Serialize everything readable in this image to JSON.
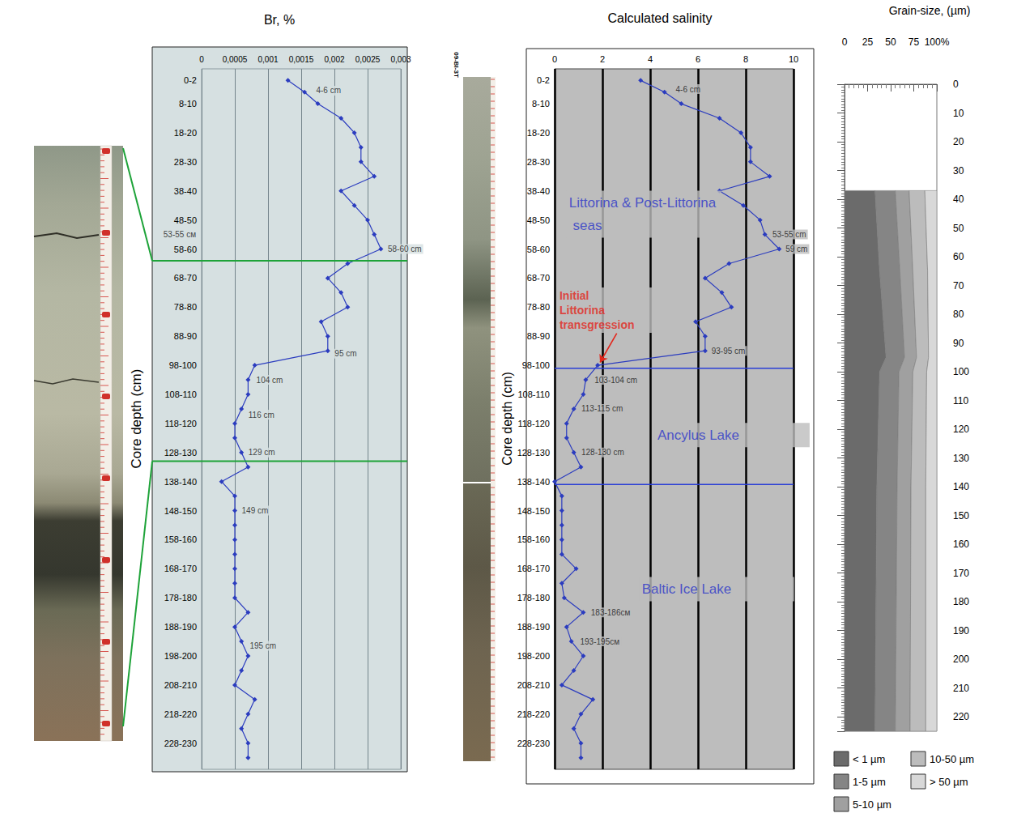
{
  "core_id": "09-BI-3T",
  "chart_data": [
    {
      "type": "line",
      "title": "Br, %",
      "y_label": "Core depth (cm)",
      "grid": true,
      "xlim": [
        0,
        0.003
      ],
      "xticks": [
        0,
        {
          "value": 0.0005,
          "label": "0,0005"
        },
        {
          "value": 0.001,
          "label": "0,001"
        },
        {
          "value": 0.0015,
          "label": "0,0015"
        },
        {
          "value": 0.002,
          "label": "0,002"
        },
        {
          "value": 0.0025,
          "label": "0,0025"
        },
        {
          "value": 0.003,
          "label": "0,003"
        }
      ],
      "ylim": [
        -3,
        238
      ],
      "yticks": [
        {
          "value": 1,
          "label": "0-2"
        },
        {
          "value": 9,
          "label": "8-10"
        },
        {
          "value": 19,
          "label": "18-20"
        },
        {
          "value": 29,
          "label": "28-30"
        },
        {
          "value": 39,
          "label": "38-40"
        },
        {
          "value": 49,
          "label": "48-50"
        },
        {
          "value": 59,
          "label": "58-60"
        },
        {
          "value": 69,
          "label": "68-70"
        },
        {
          "value": 79,
          "label": "78-80"
        },
        {
          "value": 89,
          "label": "88-90"
        },
        {
          "value": 99,
          "label": "98-100"
        },
        {
          "value": 109,
          "label": "108-110"
        },
        {
          "value": 119,
          "label": "118-120"
        },
        {
          "value": 129,
          "label": "128-130"
        },
        {
          "value": 139,
          "label": "138-140"
        },
        {
          "value": 149,
          "label": "148-150"
        },
        {
          "value": 159,
          "label": "158-160"
        },
        {
          "value": 169,
          "label": "168-170"
        },
        {
          "value": 179,
          "label": "178-180"
        },
        {
          "value": 189,
          "label": "188-190"
        },
        {
          "value": 199,
          "label": "198-200"
        },
        {
          "value": 209,
          "label": "208-210"
        },
        {
          "value": 219,
          "label": "218-220"
        },
        {
          "value": 229,
          "label": "228-230"
        }
      ],
      "series": [
        {
          "color": "#2b3cbf",
          "marker": "diamond",
          "x": [
            0.0013,
            0.00155,
            0.00175,
            0.0021,
            0.0023,
            0.0024,
            0.0024,
            0.0026,
            0.0021,
            0.0023,
            0.0025,
            0.0026,
            0.0027,
            0.0022,
            0.0019,
            0.0021,
            0.0022,
            0.0018,
            0.0019,
            0.0019,
            0.0008,
            0.0007,
            0.0007,
            0.0006,
            0.0005,
            0.0005,
            0.0006,
            0.0007,
            0.0003,
            0.0005,
            0.0005,
            0.0005,
            0.0005,
            0.0005,
            0.0005,
            0.0005,
            0.0005,
            0.0007,
            0.0005,
            0.0006,
            0.0007,
            0.0006,
            0.0005,
            0.0008,
            0.0007,
            0.0006,
            0.0007,
            0.0007
          ],
          "y": [
            1,
            5,
            9,
            14,
            19,
            24,
            29,
            34,
            39,
            44,
            49,
            54,
            59,
            64,
            69,
            74,
            79,
            84,
            89,
            94,
            99,
            104,
            109,
            114,
            119,
            124,
            129,
            134,
            139,
            144,
            149,
            154,
            159,
            164,
            169,
            174,
            179,
            184,
            189,
            194,
            199,
            204,
            209,
            214,
            219,
            224,
            229,
            234
          ]
        }
      ],
      "annotations": [
        {
          "text": "4-6 cm",
          "x": 0.0017,
          "y": 4.5
        },
        {
          "text": "53-55 см",
          "x": -0.0006,
          "y": 54
        },
        {
          "text": "58-60 cm",
          "x": 0.00278,
          "y": 59
        },
        {
          "text": "95 cm",
          "x": 0.00198,
          "y": 95
        },
        {
          "text": "104 cm",
          "x": 0.0008,
          "y": 104
        },
        {
          "text": "116 cm",
          "x": 0.00068,
          "y": 116
        },
        {
          "text": "129 cm",
          "x": 0.00068,
          "y": 129
        },
        {
          "text": "149 cm",
          "x": 0.00058,
          "y": 149
        },
        {
          "text": "195 cm",
          "x": 0.0007,
          "y": 195.5
        }
      ],
      "boundaries": [
        {
          "y": 63,
          "color": "#1ea339"
        },
        {
          "y": 132,
          "color": "#1ea339"
        }
      ]
    },
    {
      "type": "line",
      "title": "Calculated salinity",
      "y_label": "Core depth (cm)",
      "grid": true,
      "xlim": [
        0,
        10
      ],
      "xticks": [
        0,
        2,
        4,
        6,
        8,
        10
      ],
      "ylim": [
        -3,
        238
      ],
      "yticks": [
        {
          "value": 1,
          "label": "0-2"
        },
        {
          "value": 9,
          "label": "8-10"
        },
        {
          "value": 19,
          "label": "18-20"
        },
        {
          "value": 29,
          "label": "28-30"
        },
        {
          "value": 39,
          "label": "38-40"
        },
        {
          "value": 49,
          "label": "48-50"
        },
        {
          "value": 59,
          "label": "58-60"
        },
        {
          "value": 69,
          "label": "68-70"
        },
        {
          "value": 79,
          "label": "78-80"
        },
        {
          "value": 89,
          "label": "88-90"
        },
        {
          "value": 99,
          "label": "98-100"
        },
        {
          "value": 109,
          "label": "108-110"
        },
        {
          "value": 119,
          "label": "118-120"
        },
        {
          "value": 129,
          "label": "128-130"
        },
        {
          "value": 139,
          "label": "138-140"
        },
        {
          "value": 149,
          "label": "148-150"
        },
        {
          "value": 159,
          "label": "158-160"
        },
        {
          "value": 169,
          "label": "168-170"
        },
        {
          "value": 179,
          "label": "178-180"
        },
        {
          "value": 189,
          "label": "188-190"
        },
        {
          "value": 199,
          "label": "198-200"
        },
        {
          "value": 209,
          "label": "208-210"
        },
        {
          "value": 219,
          "label": "218-220"
        },
        {
          "value": 229,
          "label": "228-230"
        }
      ],
      "series": [
        {
          "color": "#2b3cbf",
          "marker": "diamond",
          "x": [
            3.6,
            4.6,
            5.3,
            6.9,
            7.8,
            8.2,
            8.2,
            9.0,
            6.9,
            7.9,
            8.6,
            8.8,
            9.4,
            7.3,
            6.3,
            7.0,
            7.4,
            5.9,
            6.3,
            6.3,
            1.8,
            1.3,
            1.2,
            0.8,
            0.5,
            0.5,
            0.8,
            1.1,
            0.0,
            0.3,
            0.3,
            0.3,
            0.3,
            0.3,
            0.9,
            0.3,
            0.4,
            1.2,
            0.5,
            0.7,
            1.2,
            0.8,
            0.3,
            1.6,
            1.1,
            0.8,
            1.1,
            1.1
          ],
          "y": [
            1,
            5,
            9,
            14,
            19,
            24,
            29,
            34,
            39,
            44,
            49,
            54,
            59,
            64,
            69,
            74,
            79,
            84,
            89,
            94,
            99,
            104,
            109,
            114,
            119,
            124,
            129,
            134,
            139,
            144,
            149,
            154,
            159,
            164,
            169,
            174,
            179,
            184,
            189,
            194,
            199,
            204,
            209,
            214,
            219,
            224,
            229,
            234
          ]
        }
      ],
      "annotations": [
        {
          "text": "4-6 cm",
          "x": 5.0,
          "y": 4
        },
        {
          "text": "53-55 cm",
          "x": 9.05,
          "y": 54
        },
        {
          "text": "59 cm",
          "x": 9.6,
          "y": 59
        },
        {
          "text": "93-95 cm",
          "x": 6.5,
          "y": 94
        },
        {
          "text": "103-104 cm",
          "x": 1.6,
          "y": 104
        },
        {
          "text": "113-115 cm",
          "x": 1.05,
          "y": 114
        },
        {
          "text": "128-130 cm",
          "x": 1.05,
          "y": 129
        },
        {
          "text": "183-186см",
          "x": 1.45,
          "y": 184
        },
        {
          "text": "193-195см",
          "x": 1.0,
          "y": 194
        }
      ],
      "zone_labels": [
        {
          "text": "Littorina & Post-Littorina seas",
          "x": 0.5,
          "y": 47,
          "color": "#2b35c9"
        },
        {
          "text": "Ancylus Lake",
          "x": 4.2,
          "y": 123,
          "color": "#2b35c9"
        },
        {
          "text": "Baltic Ice Lake",
          "x": 3.55,
          "y": 176,
          "color": "#2b35c9"
        }
      ],
      "callout": {
        "text": "Initial Littorina transgression",
        "x": 0.1,
        "y": 80,
        "color": "#e3261c",
        "arrow_from": [
          2.6,
          88
        ],
        "arrow_to": [
          1.9,
          98
        ]
      },
      "boundaries": [
        {
          "y": 100,
          "color": "#2b3fd6"
        },
        {
          "y": 140,
          "color": "#2b3fd6"
        }
      ]
    },
    {
      "type": "area",
      "stacked": true,
      "title": "Grain-size, (µm)",
      "legend": "bottom",
      "xlim": [
        0,
        100
      ],
      "xticks": [
        0,
        25,
        50,
        75,
        {
          "value": 100,
          "label": "100%"
        }
      ],
      "ylim": [
        0,
        225
      ],
      "yticks": [
        0,
        10,
        20,
        30,
        40,
        50,
        60,
        70,
        80,
        90,
        100,
        110,
        120,
        130,
        140,
        150,
        160,
        170,
        180,
        190,
        200,
        210,
        220
      ],
      "y": [
        37,
        65,
        95,
        100,
        140,
        225
      ],
      "series": [
        {
          "name": "< 1 µm",
          "color": "#6b6b6b",
          "values": [
            33,
            38,
            45,
            38,
            35,
            33
          ]
        },
        {
          "name": "1-5 µm",
          "color": "#858585",
          "values": [
            22,
            22,
            20,
            21,
            22,
            22
          ]
        },
        {
          "name": "5-10 µm",
          "color": "#a0a0a0",
          "values": [
            15,
            14,
            13,
            15,
            15,
            16
          ]
        },
        {
          "name": "10-50 µm",
          "color": "#bcbcbc",
          "values": [
            17,
            16,
            13,
            15,
            16,
            17
          ]
        },
        {
          "name": "> 50 µm",
          "color": "#d8d8d8",
          "values": [
            13,
            10,
            9,
            11,
            12,
            12
          ]
        }
      ]
    }
  ]
}
